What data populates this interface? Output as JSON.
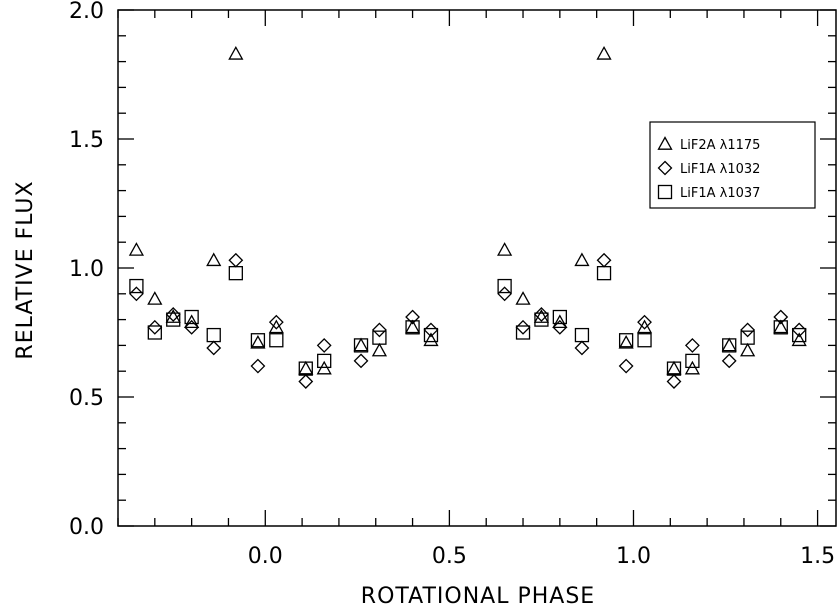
{
  "chart_data": {
    "type": "scatter",
    "title": "",
    "xlabel": "ROTATIONAL PHASE",
    "ylabel": "RELATIVE FLUX",
    "xlim": [
      -0.4,
      1.55
    ],
    "ylim": [
      0.0,
      2.0
    ],
    "x_ticks": [
      0.0,
      0.5,
      1.0,
      1.5
    ],
    "x_tick_labels": [
      "0.0",
      "0.5",
      "1.0",
      "1.5"
    ],
    "y_ticks": [
      0.0,
      0.5,
      1.0,
      1.5,
      2.0
    ],
    "y_tick_labels": [
      "0.0",
      "0.5",
      "1.0",
      "1.5",
      "2.0"
    ],
    "grid": false,
    "legend_position": "right",
    "series": [
      {
        "name": "LiF2A λ1175",
        "marker": "triangle",
        "points": [
          [
            -0.35,
            1.07
          ],
          [
            -0.3,
            0.88
          ],
          [
            -0.25,
            0.81
          ],
          [
            -0.2,
            0.79
          ],
          [
            -0.14,
            1.03
          ],
          [
            -0.08,
            1.83
          ],
          [
            -0.02,
            0.71
          ],
          [
            0.03,
            0.77
          ],
          [
            0.11,
            0.61
          ],
          [
            0.16,
            0.61
          ],
          [
            0.26,
            0.7
          ],
          [
            0.31,
            0.68
          ],
          [
            0.4,
            0.77
          ],
          [
            0.45,
            0.72
          ],
          [
            0.65,
            1.07
          ],
          [
            0.7,
            0.88
          ],
          [
            0.75,
            0.81
          ],
          [
            0.8,
            0.79
          ],
          [
            0.86,
            1.03
          ],
          [
            0.92,
            1.83
          ],
          [
            0.98,
            0.71
          ],
          [
            1.03,
            0.77
          ],
          [
            1.11,
            0.61
          ],
          [
            1.16,
            0.61
          ],
          [
            1.26,
            0.7
          ],
          [
            1.31,
            0.68
          ],
          [
            1.4,
            0.77
          ],
          [
            1.45,
            0.72
          ]
        ]
      },
      {
        "name": "LiF1A λ1032",
        "marker": "diamond",
        "points": [
          [
            -0.35,
            0.9
          ],
          [
            -0.3,
            0.77
          ],
          [
            -0.25,
            0.82
          ],
          [
            -0.2,
            0.77
          ],
          [
            -0.14,
            0.69
          ],
          [
            -0.08,
            1.03
          ],
          [
            -0.02,
            0.62
          ],
          [
            0.03,
            0.79
          ],
          [
            0.11,
            0.56
          ],
          [
            0.16,
            0.7
          ],
          [
            0.26,
            0.64
          ],
          [
            0.31,
            0.76
          ],
          [
            0.4,
            0.81
          ],
          [
            0.45,
            0.76
          ],
          [
            0.65,
            0.9
          ],
          [
            0.7,
            0.77
          ],
          [
            0.75,
            0.82
          ],
          [
            0.8,
            0.77
          ],
          [
            0.86,
            0.69
          ],
          [
            0.92,
            1.03
          ],
          [
            0.98,
            0.62
          ],
          [
            1.03,
            0.79
          ],
          [
            1.11,
            0.56
          ],
          [
            1.16,
            0.7
          ],
          [
            1.26,
            0.64
          ],
          [
            1.31,
            0.76
          ],
          [
            1.4,
            0.81
          ],
          [
            1.45,
            0.76
          ]
        ]
      },
      {
        "name": "LiF1A λ1037",
        "marker": "square",
        "points": [
          [
            -0.35,
            0.93
          ],
          [
            -0.3,
            0.75
          ],
          [
            -0.25,
            0.8
          ],
          [
            -0.2,
            0.81
          ],
          [
            -0.14,
            0.74
          ],
          [
            -0.08,
            0.98
          ],
          [
            -0.02,
            0.72
          ],
          [
            0.03,
            0.72
          ],
          [
            0.11,
            0.61
          ],
          [
            0.16,
            0.64
          ],
          [
            0.26,
            0.7
          ],
          [
            0.31,
            0.73
          ],
          [
            0.4,
            0.77
          ],
          [
            0.45,
            0.74
          ],
          [
            0.65,
            0.93
          ],
          [
            0.7,
            0.75
          ],
          [
            0.75,
            0.8
          ],
          [
            0.8,
            0.81
          ],
          [
            0.86,
            0.74
          ],
          [
            0.92,
            0.98
          ],
          [
            0.98,
            0.72
          ],
          [
            1.03,
            0.72
          ],
          [
            1.11,
            0.61
          ],
          [
            1.16,
            0.64
          ],
          [
            1.26,
            0.7
          ],
          [
            1.31,
            0.73
          ],
          [
            1.4,
            0.77
          ],
          [
            1.45,
            0.74
          ]
        ]
      }
    ]
  }
}
